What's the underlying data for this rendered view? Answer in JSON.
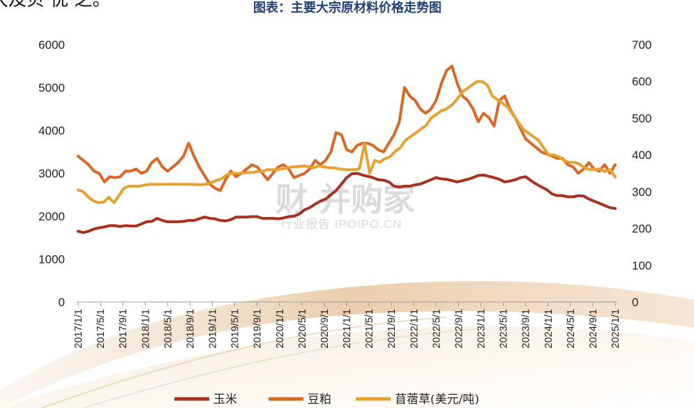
{
  "chart_data": {
    "type": "line",
    "title": "图表：主要大宗原材料价格走势图",
    "corner_text": "大及贝 优 之。",
    "watermark": {
      "main": "财 并购家",
      "sub": "行业报告 IPOIPO.CN"
    },
    "y_left": {
      "min": 0,
      "max": 6000,
      "ticks": [
        "0",
        "1000",
        "2000",
        "3000",
        "4000",
        "5000",
        "6000"
      ]
    },
    "y_right": {
      "min": 0,
      "max": 700,
      "ticks": [
        "0",
        "100",
        "200",
        "300",
        "400",
        "500",
        "600",
        "700"
      ]
    },
    "x_ticks": [
      "2017/1/1",
      "2017/5/1",
      "2017/9/1",
      "2018/1/1",
      "2018/5/1",
      "2018/9/1",
      "2019/1/1",
      "2019/5/1",
      "2019/9/1",
      "2020/1/1",
      "2020/5/1",
      "2020/9/1",
      "2021/1/1",
      "2021/5/1",
      "2021/9/1",
      "2022/1/1",
      "2022/5/1",
      "2022/9/1",
      "2023/1/1",
      "2023/5/1",
      "2023/9/1",
      "2024/1/1",
      "2024/5/1",
      "2024/9/1",
      "2025/1/1"
    ],
    "x_start": "2017/1",
    "series": [
      {
        "name": "玉米",
        "axis": "left",
        "color": "#a6321f",
        "values": [
          1650,
          1620,
          1650,
          1700,
          1730,
          1750,
          1780,
          1780,
          1760,
          1780,
          1770,
          1770,
          1820,
          1870,
          1880,
          1950,
          1900,
          1870,
          1870,
          1870,
          1880,
          1900,
          1900,
          1940,
          1980,
          1950,
          1940,
          1900,
          1890,
          1920,
          1980,
          1980,
          1980,
          1990,
          1990,
          1950,
          1950,
          1950,
          1940,
          1960,
          1990,
          2000,
          2050,
          2150,
          2200,
          2280,
          2350,
          2400,
          2500,
          2600,
          2750,
          2900,
          2990,
          3000,
          2960,
          2930,
          2900,
          2850,
          2840,
          2800,
          2700,
          2680,
          2700,
          2700,
          2730,
          2750,
          2800,
          2850,
          2900,
          2870,
          2860,
          2830,
          2800,
          2830,
          2860,
          2900,
          2950,
          2960,
          2930,
          2900,
          2860,
          2800,
          2820,
          2850,
          2900,
          2920,
          2830,
          2750,
          2680,
          2620,
          2520,
          2480,
          2480,
          2450,
          2450,
          2480,
          2470,
          2400,
          2350,
          2300,
          2250,
          2200,
          2180
        ]
      },
      {
        "name": "豆粕",
        "axis": "left",
        "color": "#dc6624",
        "values": [
          3400,
          3300,
          3200,
          3050,
          3000,
          2800,
          2920,
          2900,
          2920,
          3050,
          3050,
          3100,
          3000,
          3050,
          3250,
          3350,
          3150,
          3050,
          3150,
          3250,
          3400,
          3700,
          3400,
          3150,
          2950,
          2750,
          2650,
          2600,
          2850,
          3050,
          2920,
          3000,
          3100,
          3200,
          3150,
          3000,
          2850,
          3000,
          3150,
          3200,
          3100,
          2900,
          2950,
          3000,
          3100,
          3300,
          3200,
          3300,
          3500,
          3950,
          3900,
          3550,
          3500,
          3650,
          3700,
          3700,
          3650,
          3550,
          3500,
          3700,
          3900,
          4200,
          5000,
          4800,
          4700,
          4500,
          4400,
          4500,
          4700,
          5100,
          5400,
          5500,
          5100,
          4800,
          4700,
          4500,
          4200,
          4400,
          4300,
          4100,
          4700,
          4800,
          4500,
          4300,
          4050,
          3800,
          3700,
          3600,
          3500,
          3450,
          3400,
          3350,
          3350,
          3200,
          3150,
          3000,
          3100,
          3250,
          3100,
          3050,
          3200,
          3000,
          3200
        ]
      },
      {
        "name": "苜蓿草(美元/吨)",
        "axis": "right",
        "color": "#e8a12f",
        "values": [
          305,
          300,
          285,
          275,
          270,
          272,
          285,
          270,
          290,
          310,
          315,
          315,
          315,
          318,
          320,
          320,
          320,
          320,
          320,
          320,
          320,
          320,
          320,
          319,
          319,
          320,
          325,
          330,
          335,
          345,
          350,
          350,
          350,
          352,
          352,
          355,
          355,
          360,
          360,
          360,
          362,
          365,
          368,
          368,
          370,
          368,
          365,
          370,
          368,
          365,
          365,
          362,
          360,
          360,
          360,
          362,
          430,
          350,
          385,
          380,
          390,
          395,
          410,
          420,
          440,
          450,
          460,
          470,
          480,
          500,
          510,
          520,
          525,
          535,
          550,
          570,
          580,
          590,
          600,
          600,
          590,
          560,
          550,
          540,
          530,
          510,
          490,
          470,
          460,
          450,
          440,
          420,
          400,
          400,
          395,
          385,
          380,
          380,
          375,
          365,
          360,
          360,
          362,
          355,
          360,
          340
        ]
      }
    ]
  }
}
